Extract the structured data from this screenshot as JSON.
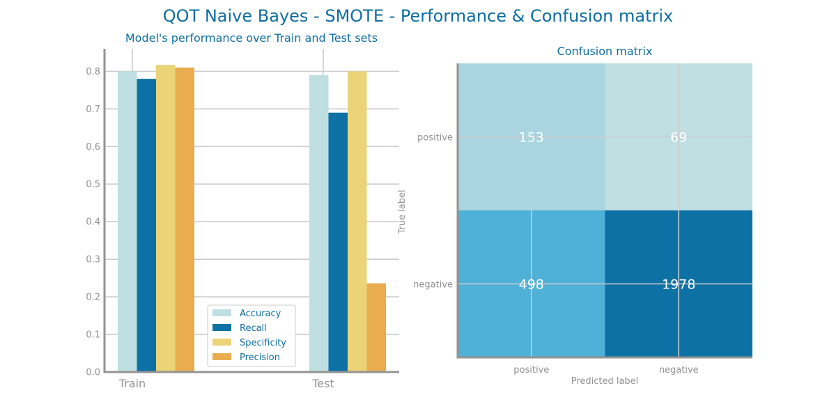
{
  "figure": {
    "title": "QOT Naive Bayes - SMOTE - Performance & Confusion matrix"
  },
  "colors": {
    "title": "#0e6ea0",
    "axis": "#939393",
    "grid": "#cccccc",
    "text_light": "#ffffff",
    "series": [
      "#bfdfe2",
      "#0e71a5",
      "#ebd378",
      "#e9ad4f"
    ],
    "cm_cells": [
      [
        "#a9d4e0",
        "#bfdfe2"
      ],
      [
        "#4fb0d8",
        "#0e71a5"
      ]
    ]
  },
  "chart_data": [
    {
      "type": "bar",
      "title": "Model's performance over Train and Test sets",
      "categories": [
        "Train",
        "Test"
      ],
      "series": [
        {
          "name": "Accuracy",
          "values": [
            0.8,
            0.79
          ]
        },
        {
          "name": "Recall",
          "values": [
            0.78,
            0.69
          ]
        },
        {
          "name": "Specificity",
          "values": [
            0.817,
            0.8
          ]
        },
        {
          "name": "Precision",
          "values": [
            0.81,
            0.236
          ]
        }
      ],
      "yticks": [
        "0.0",
        "0.1",
        "0.2",
        "0.3",
        "0.4",
        "0.5",
        "0.6",
        "0.7",
        "0.8"
      ],
      "ylim": [
        0,
        0.86
      ],
      "grid": true,
      "legend": "lower-center"
    },
    {
      "type": "heatmap",
      "title": "Confusion matrix",
      "xlabel": "Predicted label",
      "ylabel": "True label",
      "x_categories": [
        "positive",
        "negative"
      ],
      "y_categories": [
        "positive",
        "negative"
      ],
      "values": [
        [
          153,
          69
        ],
        [
          498,
          1978
        ]
      ]
    }
  ]
}
